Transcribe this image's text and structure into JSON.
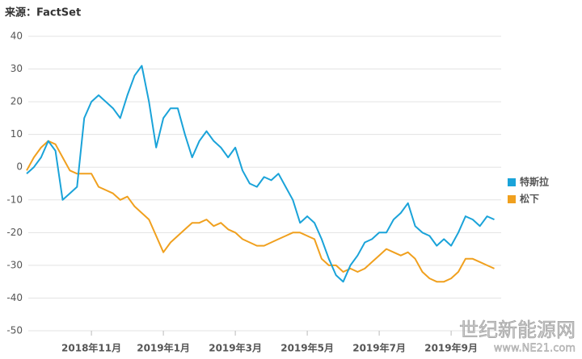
{
  "chart_data": {
    "type": "line",
    "source": "来源：FactSet",
    "watermark": "世纪新能源网",
    "watermark_url": "www.NE21.com",
    "categories": [
      null,
      null,
      null,
      null,
      null,
      null,
      null,
      null,
      null,
      "2018年11月",
      null,
      null,
      null,
      null,
      null,
      null,
      null,
      null,
      null,
      "2019年1月",
      null,
      null,
      null,
      null,
      null,
      null,
      null,
      null,
      null,
      "2019年3月",
      null,
      null,
      null,
      null,
      null,
      null,
      null,
      null,
      null,
      "2019年5月",
      null,
      null,
      null,
      null,
      null,
      null,
      null,
      null,
      null,
      "2019年7月",
      null,
      null,
      null,
      null,
      null,
      null,
      null,
      null,
      null,
      "2019年9月",
      null,
      null,
      null,
      null,
      null,
      null
    ],
    "series": [
      {
        "name": "特斯拉",
        "color": "#1aa3d9",
        "values": [
          -2,
          0,
          3,
          8,
          5,
          -10,
          -8,
          -6,
          15,
          20,
          22,
          20,
          18,
          15,
          22,
          28,
          31,
          20,
          6,
          15,
          18,
          18,
          10,
          3,
          8,
          11,
          8,
          6,
          3,
          6,
          -1,
          -5,
          -6,
          -3,
          -4,
          -2,
          -6,
          -10,
          -17,
          -15,
          -17,
          -22,
          -28,
          -33,
          -35,
          -30,
          -27,
          -23,
          -22,
          -20,
          -20,
          -16,
          -14,
          -11,
          -18,
          -20,
          -21,
          -24,
          -22,
          -24,
          -20,
          -15,
          -16,
          -18,
          -15,
          -16
        ]
      },
      {
        "name": "松下",
        "color": "#f0a01e",
        "values": [
          -1,
          3,
          6,
          8,
          7,
          3,
          -1,
          -2,
          -2,
          -2,
          -6,
          -7,
          -8,
          -10,
          -9,
          -12,
          -14,
          -16,
          -21,
          -26,
          -23,
          -21,
          -19,
          -17,
          -17,
          -16,
          -18,
          -17,
          -19,
          -20,
          -22,
          -23,
          -24,
          -24,
          -23,
          -22,
          -21,
          -20,
          -20,
          -21,
          -22,
          -28,
          -30,
          -30,
          -32,
          -31,
          -32,
          -31,
          -29,
          -27,
          -25,
          -26,
          -27,
          -26,
          -28,
          -32,
          -34,
          -35,
          -35,
          -34,
          -32,
          -28,
          -28,
          -29,
          -30,
          -31
        ]
      }
    ],
    "ylim": [
      -50,
      40
    ],
    "yticks": [
      -50,
      -40,
      -30,
      -20,
      -10,
      0,
      10,
      20,
      30,
      40
    ],
    "grid": true,
    "legend": "right"
  }
}
